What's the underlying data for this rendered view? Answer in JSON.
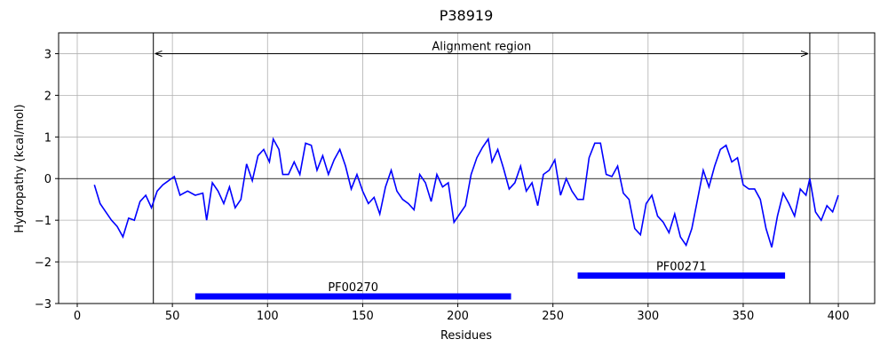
{
  "chart_data": {
    "type": "line",
    "title": "P38919",
    "xlabel": "Residues",
    "ylabel": "Hydropathy (kcal/mol)",
    "color": "#0000ff",
    "x": [
      9,
      12,
      15,
      18,
      21,
      24,
      27,
      30,
      33,
      36,
      39,
      42,
      45,
      48,
      51,
      54,
      58,
      62,
      66,
      68,
      71,
      74,
      77,
      80,
      83,
      86,
      89,
      92,
      95,
      98,
      101,
      103,
      106,
      108,
      111,
      114,
      117,
      120,
      123,
      126,
      129,
      132,
      135,
      138,
      141,
      144,
      147,
      150,
      153,
      156,
      159,
      162,
      165,
      168,
      171,
      174,
      177,
      180,
      183,
      186,
      189,
      192,
      195,
      198,
      201,
      204,
      207,
      210,
      213,
      216,
      218,
      221,
      224,
      227,
      230,
      233,
      236,
      239,
      242,
      245,
      248,
      251,
      254,
      257,
      260,
      263,
      266,
      269,
      272,
      275,
      278,
      281,
      284,
      287,
      290,
      293,
      296,
      299,
      302,
      305,
      308,
      311,
      314,
      317,
      320,
      323,
      326,
      329,
      332,
      335,
      338,
      341,
      344,
      347,
      350,
      353,
      356,
      359,
      362,
      365,
      368,
      371,
      374,
      377,
      380,
      383,
      385,
      388,
      391,
      394,
      397,
      400
    ],
    "values": [
      -0.15,
      -0.6,
      -0.8,
      -1.0,
      -1.15,
      -1.4,
      -0.95,
      -1.0,
      -0.55,
      -0.4,
      -0.7,
      -0.3,
      -0.15,
      -0.05,
      0.05,
      -0.4,
      -0.3,
      -0.4,
      -0.35,
      -1.0,
      -0.1,
      -0.3,
      -0.6,
      -0.2,
      -0.7,
      -0.5,
      0.35,
      -0.05,
      0.55,
      0.7,
      0.4,
      0.95,
      0.7,
      0.1,
      0.1,
      0.4,
      0.1,
      0.85,
      0.8,
      0.2,
      0.55,
      0.1,
      0.45,
      0.7,
      0.3,
      -0.25,
      0.1,
      -0.3,
      -0.6,
      -0.45,
      -0.85,
      -0.2,
      0.2,
      -0.3,
      -0.5,
      -0.6,
      -0.75,
      0.1,
      -0.1,
      -0.55,
      0.1,
      -0.2,
      -0.1,
      -1.05,
      -0.85,
      -0.65,
      0.1,
      0.5,
      0.75,
      0.95,
      0.4,
      0.7,
      0.25,
      -0.25,
      -0.1,
      0.3,
      -0.3,
      -0.1,
      -0.65,
      0.1,
      0.2,
      0.45,
      -0.4,
      0.0,
      -0.3,
      -0.5,
      -0.5,
      0.5,
      0.85,
      0.85,
      0.1,
      0.05,
      0.3,
      -0.35,
      -0.5,
      -1.2,
      -1.35,
      -0.6,
      -0.4,
      -0.9,
      -1.05,
      -1.3,
      -0.85,
      -1.4,
      -1.6,
      -1.2,
      -0.5,
      0.2,
      -0.2,
      0.3,
      0.7,
      0.8,
      0.4,
      0.5,
      -0.15,
      -0.25,
      -0.25,
      -0.5,
      -1.2,
      -1.65,
      -0.9,
      -0.35,
      -0.6,
      -0.9,
      -0.25,
      -0.4,
      0.0,
      -0.8,
      -1.0,
      -0.65,
      -0.8,
      -0.4
    ],
    "xlim": [
      -9.8,
      419.1
    ],
    "ylim": [
      -3,
      3.5
    ],
    "xticks": [
      0,
      50,
      100,
      150,
      200,
      250,
      300,
      350,
      400
    ],
    "yticks": [
      {
        "value": -3,
        "label": "−3"
      },
      {
        "value": -2,
        "label": "−2"
      },
      {
        "value": -1,
        "label": "−1"
      },
      0,
      1,
      2,
      3
    ],
    "grid": true,
    "hline": 0,
    "vlines": [
      40,
      385
    ],
    "region": {
      "text": "Alignment region",
      "start": 40,
      "end": 385,
      "y": 3
    },
    "domains": [
      {
        "name": "PF00270",
        "start": 62,
        "end": 228,
        "y": -2.83,
        "color": "#0000ff"
      },
      {
        "name": "PF00271",
        "start": 263,
        "end": 372,
        "y": -2.33,
        "color": "#0000ff"
      }
    ]
  }
}
